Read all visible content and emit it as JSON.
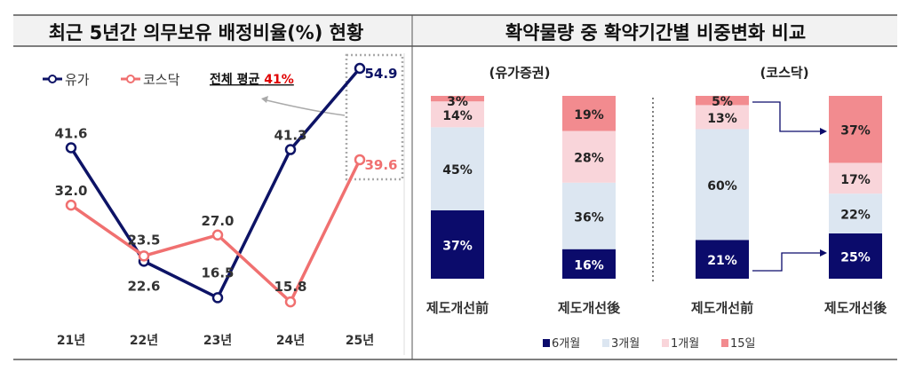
{
  "chart_data": [
    {
      "type": "line",
      "title": "최근 5년간 의무보유 배정비율(%) 현황",
      "categories": [
        "21년",
        "22년",
        "23년",
        "24년",
        "25년"
      ],
      "series": [
        {
          "name": "유가",
          "color": "#0d1366",
          "values": [
            41.6,
            22.6,
            16.5,
            41.3,
            54.9
          ]
        },
        {
          "name": "코스닥",
          "color": "#f07070",
          "values": [
            32.0,
            23.5,
            27.0,
            15.8,
            39.6
          ]
        }
      ],
      "annotation": {
        "label": "전체 평균",
        "value": "41%",
        "value_color": "#e00000"
      },
      "legend_position": "top-left",
      "grid": false
    },
    {
      "type": "bar",
      "stacked": true,
      "title": "확약물량 중 확약기간별 비중변화 비교",
      "groups": [
        {
          "label": "(유가증권)",
          "bars": [
            {
              "label": "제도개선前",
              "values": [
                37,
                45,
                14,
                3
              ]
            },
            {
              "label": "제도개선後",
              "values": [
                16,
                36,
                28,
                19
              ]
            }
          ]
        },
        {
          "label": "(코스닥)",
          "bars": [
            {
              "label": "제도개선前",
              "values": [
                21,
                60,
                13,
                5
              ]
            },
            {
              "label": "제도개선後",
              "values": [
                25,
                22,
                17,
                37
              ]
            }
          ]
        }
      ],
      "series": [
        {
          "name": "6개월",
          "color": "#0b0b6b"
        },
        {
          "name": "3개월",
          "color": "#dce6f1"
        },
        {
          "name": "1개월",
          "color": "#f9d5da"
        },
        {
          "name": "15일",
          "color": "#f28b8f"
        }
      ],
      "legend_position": "bottom"
    }
  ]
}
